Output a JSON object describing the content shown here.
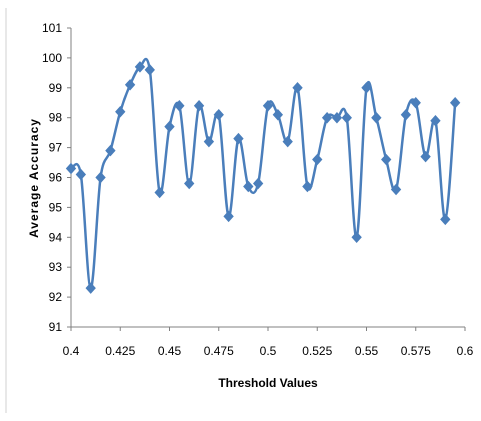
{
  "chart_data": {
    "type": "line",
    "title": "",
    "xlabel": "Threshold Values",
    "ylabel": "Average Accuracy",
    "xlim": [
      0.4,
      0.6
    ],
    "ylim": [
      91,
      101
    ],
    "x_ticks": [
      "0.4",
      "0.425",
      "0.45",
      "0.475",
      "0.5",
      "0.525",
      "0.55",
      "0.575",
      "0.6"
    ],
    "y_ticks": [
      "91",
      "92",
      "93",
      "94",
      "95",
      "96",
      "97",
      "98",
      "99",
      "100",
      "101"
    ],
    "x_tick_values": [
      0.4,
      0.425,
      0.45,
      0.475,
      0.5,
      0.525,
      0.55,
      0.575,
      0.6
    ],
    "y_tick_values": [
      91,
      92,
      93,
      94,
      95,
      96,
      97,
      98,
      99,
      100,
      101
    ],
    "grid": false,
    "legend": "none",
    "marker": "diamond",
    "series_color": "#4A7EBB",
    "series": [
      {
        "x": [
          0.4,
          0.405,
          0.41,
          0.415,
          0.42,
          0.425,
          0.43,
          0.435,
          0.44,
          0.445,
          0.45,
          0.455,
          0.46,
          0.465,
          0.47,
          0.475,
          0.48,
          0.485,
          0.49,
          0.495,
          0.5,
          0.505,
          0.51,
          0.515,
          0.52,
          0.525,
          0.53,
          0.535,
          0.54,
          0.545,
          0.55,
          0.555,
          0.56,
          0.565,
          0.57,
          0.575,
          0.58,
          0.585,
          0.59,
          0.595
        ],
        "y": [
          96.3,
          96.1,
          92.3,
          96.0,
          96.9,
          98.2,
          99.1,
          99.7,
          99.6,
          95.5,
          97.7,
          98.4,
          95.8,
          98.4,
          97.2,
          98.1,
          94.7,
          97.3,
          95.7,
          95.8,
          98.4,
          98.1,
          97.2,
          99.0,
          95.7,
          96.6,
          98.0,
          98.0,
          98.0,
          94.0,
          99.0,
          98.0,
          96.6,
          95.6,
          98.1,
          98.5,
          96.7,
          97.9,
          94.6,
          98.5
        ]
      }
    ]
  }
}
